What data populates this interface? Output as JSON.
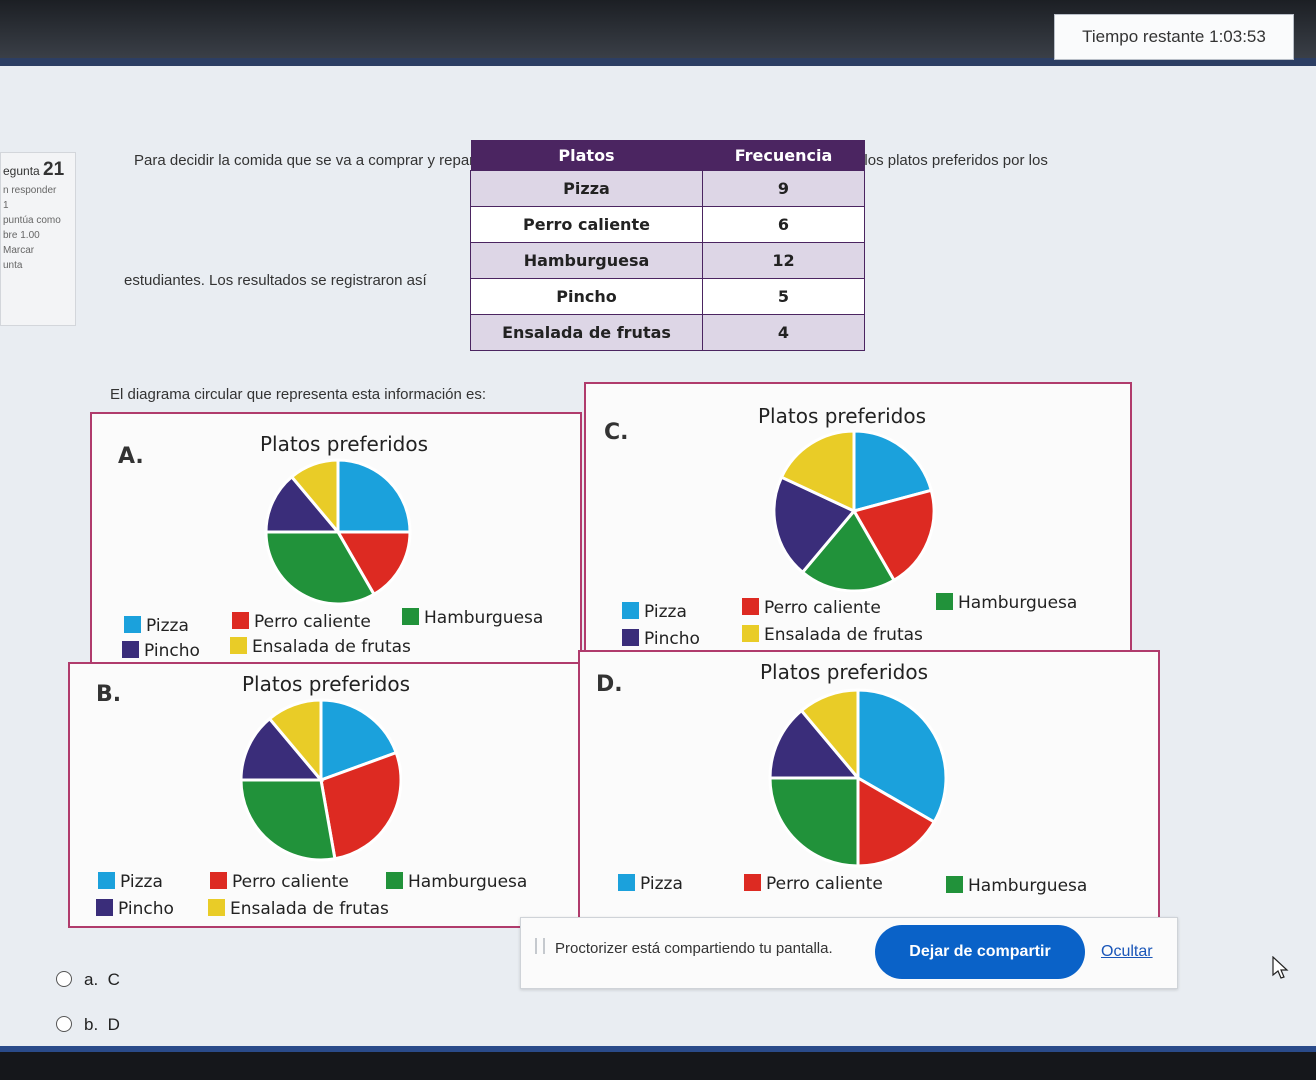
{
  "timer": {
    "label": "Tiempo restante",
    "value": "1:03:53"
  },
  "question_info": {
    "label": "egunta",
    "number": "21",
    "status": "n responder",
    "line2": "1",
    "score_label": "puntúa como",
    "score_value": "bre 1.00",
    "flag": "Marcar",
    "flag2": "unta"
  },
  "question": {
    "text_line1": "Para decidir la comida que se va a comprar y repartir en el salón de clase, se realizó una encuesta acerca de los platos preferidos por los",
    "text_line2": "estudiantes. Los resultados se registraron así",
    "diagram_prompt": "El diagrama circular que representa esta información es:"
  },
  "table": {
    "headers": [
      "Platos",
      "Frecuencia"
    ],
    "rows": [
      {
        "plato": "Pizza",
        "frecuencia": "9"
      },
      {
        "plato": "Perro caliente",
        "frecuencia": "6"
      },
      {
        "plato": "Hamburguesa",
        "frecuencia": "12"
      },
      {
        "plato": "Pincho",
        "frecuencia": "5"
      },
      {
        "plato": "Ensalada de frutas",
        "frecuencia": "4"
      }
    ]
  },
  "colors": {
    "Pizza": "#1ba1dc",
    "Perro caliente": "#dd2a22",
    "Hamburguesa": "#21923a",
    "Pincho": "#3a2d7a",
    "Ensalada de frutas": "#e9cc27"
  },
  "legend_labels": [
    "Pizza",
    "Perro caliente",
    "Hamburguesa",
    "Pincho",
    "Ensalada de frutas"
  ],
  "chart_data": [
    {
      "letter": "A.",
      "type": "pie",
      "title": "Platos preferidos",
      "categories": [
        "Pizza",
        "Perro caliente",
        "Hamburguesa",
        "Pincho",
        "Ensalada de frutas"
      ],
      "values": [
        9,
        6,
        12,
        5,
        4
      ]
    },
    {
      "letter": "B.",
      "type": "pie",
      "title": "Platos preferidos",
      "categories": [
        "Pizza",
        "Perro caliente",
        "Hamburguesa",
        "Pincho",
        "Ensalada de frutas"
      ],
      "values": [
        7,
        10,
        10,
        5,
        4
      ]
    },
    {
      "letter": "C.",
      "type": "pie",
      "title": "Platos preferidos",
      "categories": [
        "Pizza",
        "Perro caliente",
        "Hamburguesa",
        "Pincho",
        "Ensalada de frutas"
      ],
      "values": [
        7.5,
        7.5,
        7,
        7.5,
        6.5
      ]
    },
    {
      "letter": "D.",
      "type": "pie",
      "title": "Platos preferidos",
      "categories": [
        "Pizza",
        "Perro caliente",
        "Hamburguesa",
        "Pincho",
        "Ensalada de frutas"
      ],
      "values": [
        12,
        6,
        9,
        5,
        4
      ]
    }
  ],
  "share_bar": {
    "message": "Proctorizer está compartiendo tu pantalla.",
    "stop_label": "Dejar de compartir",
    "hide_label": "Ocultar"
  },
  "answers": [
    {
      "letter": "a.",
      "text": "C"
    },
    {
      "letter": "b.",
      "text": "D"
    }
  ]
}
